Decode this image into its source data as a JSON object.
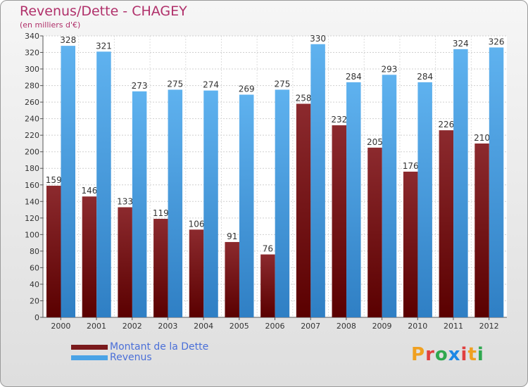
{
  "title": "Revenus/Dette - CHAGEY",
  "subtitle": "(en milliers d'€)",
  "legend": [
    {
      "label": "Montant de la Dette",
      "color": "#7a1a1c"
    },
    {
      "label": "Revenus",
      "color": "#4aa3e6"
    }
  ],
  "logo": {
    "text": "Proxiti",
    "letters": [
      "P",
      "r",
      "o",
      "x",
      "i",
      "t",
      "i"
    ]
  },
  "colors": {
    "dette": "#7a1a1c",
    "revenus": "#4aa3e6",
    "title": "#b0306a"
  },
  "chart_data": {
    "type": "bar",
    "categories": [
      "2000",
      "2001",
      "2002",
      "2003",
      "2004",
      "2005",
      "2006",
      "2007",
      "2008",
      "2009",
      "2010",
      "2011",
      "2012"
    ],
    "series": [
      {
        "name": "Montant de la Dette",
        "values": [
          159,
          146,
          133,
          119,
          106,
          91,
          76,
          258,
          232,
          205,
          176,
          226,
          210
        ]
      },
      {
        "name": "Revenus",
        "values": [
          328,
          321,
          273,
          275,
          274,
          269,
          275,
          330,
          284,
          293,
          284,
          324,
          326
        ]
      }
    ],
    "yticks": [
      0,
      20,
      40,
      60,
      80,
      100,
      120,
      140,
      160,
      180,
      200,
      220,
      240,
      260,
      280,
      300,
      320,
      340
    ],
    "ylim": [
      0,
      340
    ],
    "grid": true,
    "legend_position": "bottom-left"
  }
}
